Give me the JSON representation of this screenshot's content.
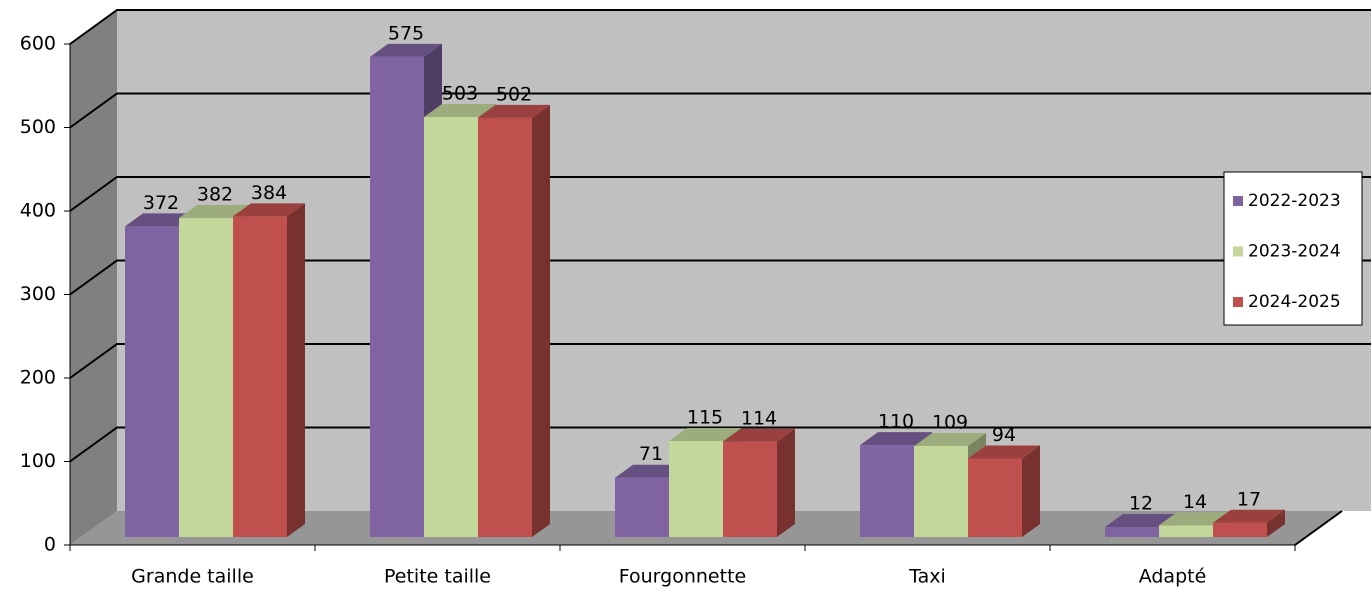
{
  "chart_data": {
    "type": "bar",
    "categories": [
      "Grande taille",
      "Petite taille",
      "Fourgonnette",
      "Taxi",
      "Adapté"
    ],
    "series": [
      {
        "name": "2022-2023",
        "color": "#8064a2",
        "values": [
          372,
          575,
          71,
          110,
          12
        ]
      },
      {
        "name": "2023-2024",
        "color": "#c4d79b",
        "values": [
          382,
          503,
          115,
          109,
          14
        ]
      },
      {
        "name": "2024-2025",
        "color": "#c0504d",
        "values": [
          384,
          502,
          114,
          94,
          17
        ]
      }
    ],
    "ylim": [
      0,
      600
    ],
    "yticks": [
      0,
      100,
      200,
      300,
      400,
      500,
      600
    ],
    "grid": true,
    "legend": "right"
  }
}
